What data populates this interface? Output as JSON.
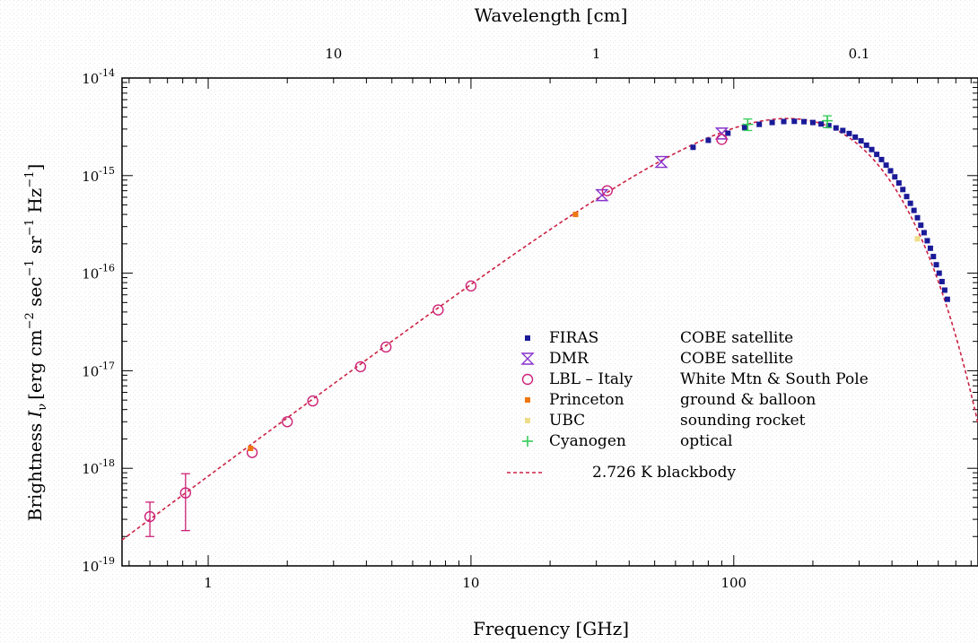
{
  "chart_data": {
    "type": "scatter",
    "title": "",
    "xlabel": "Frequency [GHz]",
    "ylabel_parts": {
      "word": "Brightness",
      "symbol": "I",
      "subscript": "ν",
      "units": "[erg cm",
      "sup1": "−2",
      "mid1": " sec",
      "sup2": "−1",
      "mid2": " sr",
      "sup3": "−1",
      "mid3": " Hz",
      "sup4": "−1",
      "end": "]"
    },
    "top_xlabel": "Wavelength [cm]",
    "xscale": "log",
    "yscale": "log",
    "xlim": [
      0.47,
      850
    ],
    "ylim": [
      1e-19,
      1e-14
    ],
    "x_tick_labels": [
      {
        "value": 1,
        "label": "1"
      },
      {
        "value": 10,
        "label": "10"
      },
      {
        "value": 100,
        "label": "100"
      }
    ],
    "y_tick_labels": [
      {
        "value": 1e-19,
        "base": "10",
        "exp": "-19"
      },
      {
        "value": 1e-18,
        "base": "10",
        "exp": "-18"
      },
      {
        "value": 1e-17,
        "base": "10",
        "exp": "-17"
      },
      {
        "value": 1e-16,
        "base": "10",
        "exp": "-16"
      },
      {
        "value": 1e-15,
        "base": "10",
        "exp": "-15"
      },
      {
        "value": 1e-14,
        "base": "10",
        "exp": "-14"
      }
    ],
    "top_tick_labels": [
      {
        "wavelength_cm": 10,
        "label": "10"
      },
      {
        "wavelength_cm": 1,
        "label": "1"
      },
      {
        "wavelength_cm": 0.1,
        "label": "0.1"
      }
    ],
    "blackbody": {
      "temperature_K": 2.726,
      "color": "#cc2244"
    },
    "series": [
      {
        "name": "FIRAS",
        "source": "COBE satellite",
        "marker": "square",
        "color": "#1a1a99",
        "points": [
          [
            70,
            1.95e-15
          ],
          [
            80,
            2.3e-15
          ],
          [
            95,
            2.72e-15
          ],
          [
            110,
            3.1e-15
          ],
          [
            125,
            3.35e-15
          ],
          [
            140,
            3.5e-15
          ],
          [
            155,
            3.58e-15
          ],
          [
            170,
            3.6e-15
          ],
          [
            185,
            3.57e-15
          ],
          [
            200,
            3.5e-15
          ],
          [
            215,
            3.38e-15
          ],
          [
            230,
            3.25e-15
          ],
          [
            245,
            3.08e-15
          ],
          [
            260,
            2.9e-15
          ],
          [
            275,
            2.7e-15
          ],
          [
            290,
            2.48e-15
          ],
          [
            305,
            2.27e-15
          ],
          [
            320,
            2.05e-15
          ],
          [
            335,
            1.85e-15
          ],
          [
            350,
            1.65e-15
          ],
          [
            365,
            1.46e-15
          ],
          [
            380,
            1.28e-15
          ],
          [
            395,
            1.12e-15
          ],
          [
            410,
            9.7e-16
          ],
          [
            425,
            8.4e-16
          ],
          [
            440,
            7.2e-16
          ],
          [
            455,
            6.1e-16
          ],
          [
            470,
            5.2e-16
          ],
          [
            485,
            4.4e-16
          ],
          [
            500,
            3.7e-16
          ],
          [
            515,
            3.1e-16
          ],
          [
            530,
            2.6e-16
          ],
          [
            545,
            2.15e-16
          ],
          [
            560,
            1.8e-16
          ],
          [
            575,
            1.48e-16
          ],
          [
            590,
            1.22e-16
          ],
          [
            605,
            1e-16
          ],
          [
            620,
            8.2e-17
          ],
          [
            635,
            6.7e-17
          ],
          [
            650,
            5.4e-17
          ]
        ]
      },
      {
        "name": "DMR",
        "source": "COBE satellite",
        "marker": "hourglass",
        "color": "#8833cc",
        "points": [
          [
            31.5,
            6.3e-16
          ],
          [
            53,
            1.38e-15
          ],
          [
            90,
            2.7e-15
          ]
        ]
      },
      {
        "name": "LBL – Italy",
        "source": "White Mtn & South Pole",
        "marker": "circle",
        "color": "#cc2277",
        "points": [
          [
            0.6,
            3.2e-19
          ],
          [
            0.82,
            5.6e-19
          ],
          [
            1.47,
            1.45e-18
          ],
          [
            2.0,
            3e-18
          ],
          [
            2.5,
            4.9e-18
          ],
          [
            3.8,
            1.1e-17
          ],
          [
            4.75,
            1.75e-17
          ],
          [
            7.5,
            4.2e-17
          ],
          [
            10.0,
            7.4e-17
          ],
          [
            33,
            7e-16
          ],
          [
            90,
            2.35e-15
          ]
        ],
        "errors": [
          [
            0.6,
            2e-19,
            4.5e-19
          ],
          [
            0.82,
            2.3e-19,
            8.8e-19
          ]
        ]
      },
      {
        "name": "Princeton",
        "source": "ground & balloon",
        "marker": "square",
        "color": "#ee7711",
        "points": [
          [
            1.45,
            1.6e-18
          ],
          [
            25,
            4e-16
          ]
        ]
      },
      {
        "name": "UBC",
        "source": "sounding rocket",
        "marker": "square",
        "color": "#eedd88",
        "points": [
          [
            500,
            2.25e-16
          ]
        ]
      },
      {
        "name": "Cyanogen",
        "source": "optical",
        "marker": "plus",
        "color": "#33cc55",
        "points": [
          [
            113,
            3.35e-15
          ],
          [
            227,
            3.65e-15
          ]
        ],
        "errors": [
          [
            113,
            2.9e-15,
            3.8e-15
          ],
          [
            227,
            3.1e-15,
            4.1e-15
          ]
        ]
      }
    ],
    "legend": {
      "placement": "lower-right",
      "blackbody_label": "2.726 K blackbody"
    }
  }
}
